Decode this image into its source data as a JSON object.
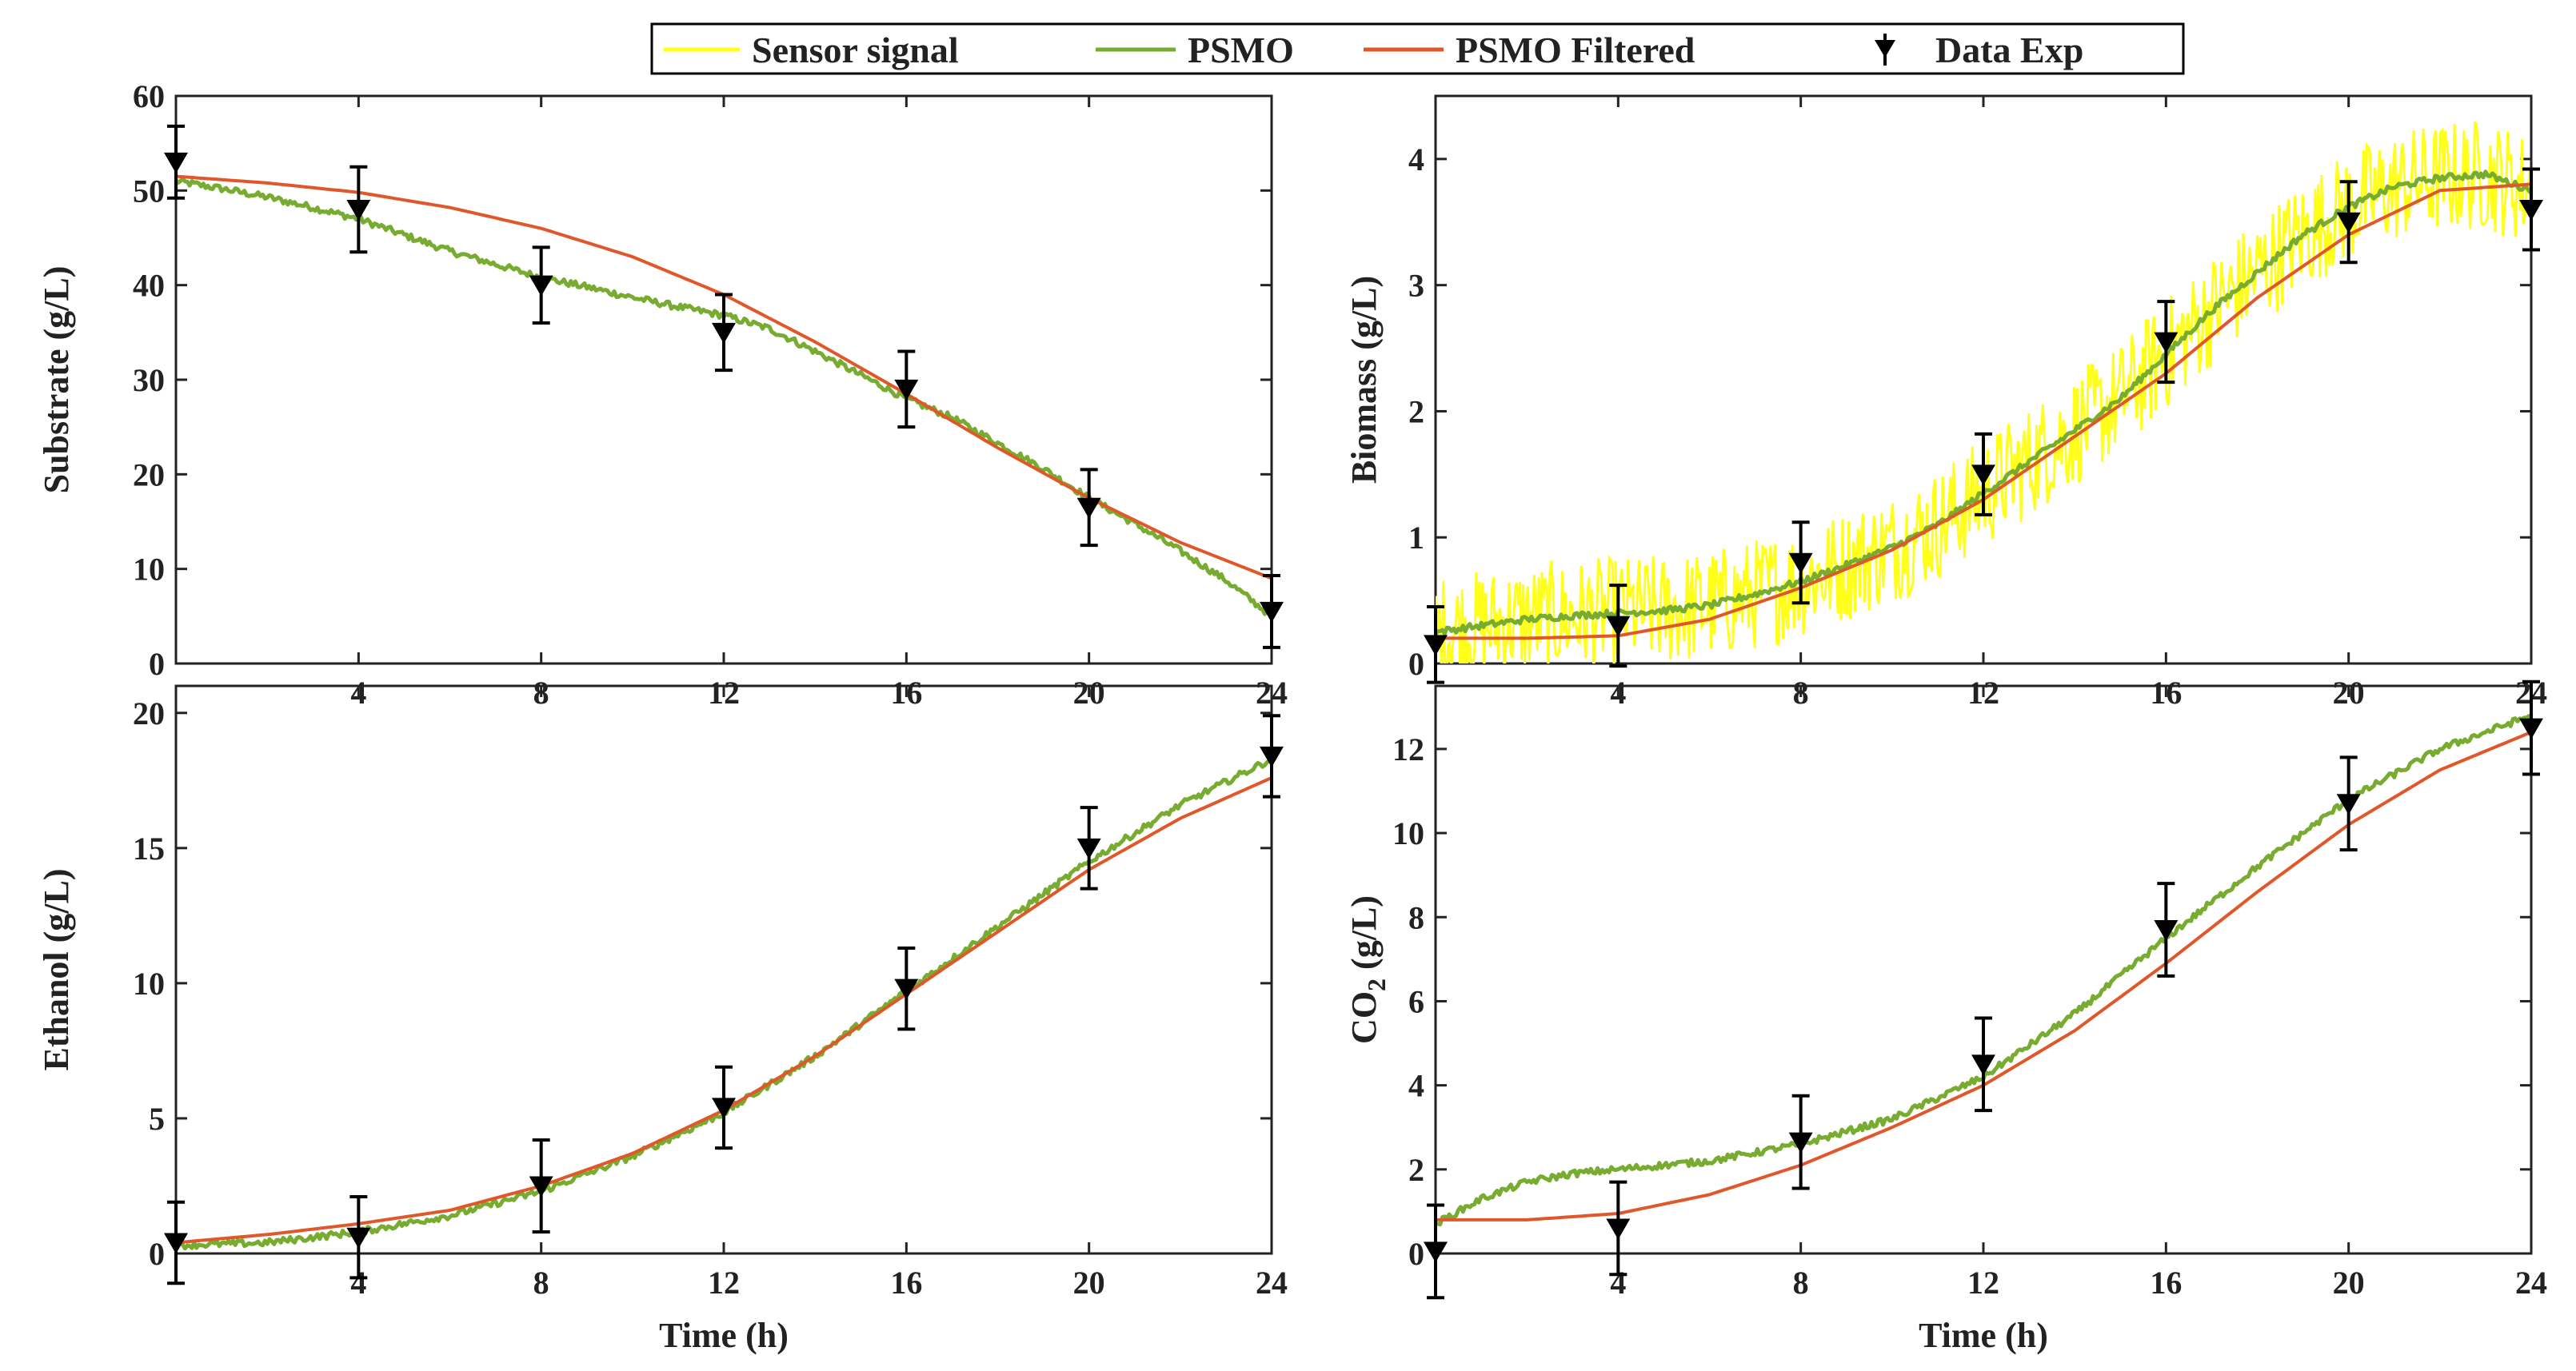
{
  "chart_data": {
    "type": "line",
    "shared_x": [
      0,
      4,
      8,
      12,
      16,
      20,
      24
    ],
    "colors": {
      "sensor_signal": "#ffff1a",
      "psmo": "#77ac30",
      "psmo_filtered": "#e0572a",
      "data_exp": "#000000"
    },
    "legend": {
      "position": "top-center",
      "entries": [
        {
          "key": "sensor_signal",
          "label": "Sensor signal"
        },
        {
          "key": "psmo",
          "label": "PSMO"
        },
        {
          "key": "psmo_filtered",
          "label": "PSMO Filtered"
        },
        {
          "key": "data_exp",
          "label": "Data Exp"
        }
      ]
    },
    "panels": [
      {
        "id": "substrate",
        "ylabel": "Substrate (g/L)",
        "xlabel": "",
        "xlim": [
          0,
          24
        ],
        "ylim": [
          0,
          60
        ],
        "xticks": [
          4,
          8,
          12,
          16,
          20,
          24
        ],
        "yticks": [
          0,
          10,
          20,
          30,
          40,
          50,
          60
        ],
        "psmo": [
          [
            0,
            51.0
          ],
          [
            1,
            50.2
          ],
          [
            2,
            49.3
          ],
          [
            3,
            48.2
          ],
          [
            4,
            47.0
          ],
          [
            5,
            45.3
          ],
          [
            6,
            43.6
          ],
          [
            7,
            42.2
          ],
          [
            8,
            40.8
          ],
          [
            9,
            39.8
          ],
          [
            10,
            38.7
          ],
          [
            11,
            37.7
          ],
          [
            12,
            36.8
          ],
          [
            13,
            35.4
          ],
          [
            14,
            33.0
          ],
          [
            15,
            30.5
          ],
          [
            16,
            28.0
          ],
          [
            17,
            26.0
          ],
          [
            18,
            23.3
          ],
          [
            19,
            20.6
          ],
          [
            20,
            17.5
          ],
          [
            21,
            14.8
          ],
          [
            22,
            11.9
          ],
          [
            23,
            8.8
          ],
          [
            24,
            5.0
          ]
        ],
        "filtered": [
          [
            0,
            51.5
          ],
          [
            2,
            50.8
          ],
          [
            4,
            49.8
          ],
          [
            6,
            48.2
          ],
          [
            8,
            46.0
          ],
          [
            10,
            43.0
          ],
          [
            12,
            39.0
          ],
          [
            14,
            34.0
          ],
          [
            16,
            28.5
          ],
          [
            18,
            22.8
          ],
          [
            20,
            17.5
          ],
          [
            22,
            12.8
          ],
          [
            24,
            9.0
          ]
        ],
        "sensor": [],
        "data_exp": [
          {
            "x": 0,
            "y": 53,
            "err": 3.8
          },
          {
            "x": 4,
            "y": 48,
            "err": 4.5
          },
          {
            "x": 8,
            "y": 40,
            "err": 4.0
          },
          {
            "x": 12,
            "y": 35,
            "err": 4.0
          },
          {
            "x": 16,
            "y": 29,
            "err": 4.0
          },
          {
            "x": 20,
            "y": 16.5,
            "err": 4.0
          },
          {
            "x": 24,
            "y": 5.5,
            "err": 3.8
          }
        ]
      },
      {
        "id": "biomass",
        "ylabel": "Biomass (g/L)",
        "xlabel": "",
        "xlim": [
          0,
          24
        ],
        "ylim": [
          0,
          4.5
        ],
        "xticks": [
          4,
          8,
          12,
          16,
          20,
          24
        ],
        "yticks": [
          0,
          1,
          2,
          3,
          4
        ],
        "psmo": [
          [
            0,
            0.25
          ],
          [
            1,
            0.3
          ],
          [
            2,
            0.35
          ],
          [
            3,
            0.38
          ],
          [
            4,
            0.4
          ],
          [
            5,
            0.42
          ],
          [
            6,
            0.46
          ],
          [
            7,
            0.55
          ],
          [
            8,
            0.65
          ],
          [
            9,
            0.78
          ],
          [
            10,
            0.92
          ],
          [
            11,
            1.1
          ],
          [
            12,
            1.35
          ],
          [
            13,
            1.6
          ],
          [
            14,
            1.85
          ],
          [
            15,
            2.1
          ],
          [
            16,
            2.45
          ],
          [
            17,
            2.8
          ],
          [
            18,
            3.1
          ],
          [
            19,
            3.4
          ],
          [
            20,
            3.62
          ],
          [
            21,
            3.78
          ],
          [
            22,
            3.85
          ],
          [
            23,
            3.88
          ],
          [
            24,
            3.75
          ]
        ],
        "filtered": [
          [
            0,
            0.2
          ],
          [
            2,
            0.2
          ],
          [
            4,
            0.22
          ],
          [
            6,
            0.35
          ],
          [
            8,
            0.6
          ],
          [
            10,
            0.9
          ],
          [
            12,
            1.3
          ],
          [
            14,
            1.8
          ],
          [
            16,
            2.3
          ],
          [
            18,
            2.9
          ],
          [
            20,
            3.4
          ],
          [
            22,
            3.75
          ],
          [
            24,
            3.8
          ]
        ],
        "sensor": [
          [
            0,
            0.25
          ],
          [
            1,
            0.3
          ],
          [
            2,
            0.35
          ],
          [
            3,
            0.38
          ],
          [
            4,
            0.4
          ],
          [
            5,
            0.42
          ],
          [
            6,
            0.46
          ],
          [
            7,
            0.55
          ],
          [
            8,
            0.65
          ],
          [
            9,
            0.78
          ],
          [
            10,
            0.92
          ],
          [
            11,
            1.1
          ],
          [
            12,
            1.35
          ],
          [
            13,
            1.6
          ],
          [
            14,
            1.85
          ],
          [
            15,
            2.1
          ],
          [
            16,
            2.45
          ],
          [
            17,
            2.8
          ],
          [
            18,
            3.1
          ],
          [
            19,
            3.4
          ],
          [
            20,
            3.62
          ],
          [
            21,
            3.78
          ],
          [
            22,
            3.85
          ],
          [
            23,
            3.88
          ],
          [
            24,
            3.75
          ]
        ],
        "sensor_noise": 0.45,
        "data_exp": [
          {
            "x": 0,
            "y": 0.15,
            "err": 0.3
          },
          {
            "x": 4,
            "y": 0.3,
            "err": 0.32
          },
          {
            "x": 8,
            "y": 0.8,
            "err": 0.32
          },
          {
            "x": 12,
            "y": 1.5,
            "err": 0.32
          },
          {
            "x": 16,
            "y": 2.55,
            "err": 0.32
          },
          {
            "x": 20,
            "y": 3.5,
            "err": 0.32
          },
          {
            "x": 24,
            "y": 3.6,
            "err": 0.32
          }
        ]
      },
      {
        "id": "ethanol",
        "ylabel": "Ethanol (g/L)",
        "xlabel": "Time (h)",
        "xlim": [
          0,
          24
        ],
        "ylim": [
          0,
          21
        ],
        "xticks": [
          4,
          8,
          12,
          16,
          20,
          24
        ],
        "yticks": [
          0,
          5,
          10,
          15,
          20
        ],
        "psmo": [
          [
            0,
            0.3
          ],
          [
            2,
            0.4
          ],
          [
            4,
            0.8
          ],
          [
            6,
            1.4
          ],
          [
            8,
            2.3
          ],
          [
            10,
            3.6
          ],
          [
            12,
            5.2
          ],
          [
            14,
            7.3
          ],
          [
            16,
            9.7
          ],
          [
            18,
            12.1
          ],
          [
            20,
            14.5
          ],
          [
            22,
            16.6
          ],
          [
            24,
            18.3
          ]
        ],
        "filtered": [
          [
            0,
            0.4
          ],
          [
            2,
            0.7
          ],
          [
            4,
            1.1
          ],
          [
            6,
            1.6
          ],
          [
            8,
            2.5
          ],
          [
            10,
            3.7
          ],
          [
            12,
            5.3
          ],
          [
            14,
            7.3
          ],
          [
            16,
            9.6
          ],
          [
            18,
            11.9
          ],
          [
            20,
            14.2
          ],
          [
            22,
            16.1
          ],
          [
            24,
            17.6
          ]
        ],
        "sensor": [],
        "data_exp": [
          {
            "x": 0,
            "y": 0.4,
            "err": 1.5
          },
          {
            "x": 4,
            "y": 0.6,
            "err": 1.5
          },
          {
            "x": 8,
            "y": 2.5,
            "err": 1.7
          },
          {
            "x": 12,
            "y": 5.4,
            "err": 1.5
          },
          {
            "x": 16,
            "y": 9.8,
            "err": 1.5
          },
          {
            "x": 20,
            "y": 15.0,
            "err": 1.5
          },
          {
            "x": 24,
            "y": 18.4,
            "err": 1.5
          }
        ]
      },
      {
        "id": "co2",
        "ylabel": "CO2 (g/L)",
        "xlabel": "Time (h)",
        "xlim": [
          0,
          24
        ],
        "ylim": [
          0,
          13.5
        ],
        "xticks": [
          4,
          8,
          12,
          16,
          20,
          24
        ],
        "yticks": [
          0,
          2,
          4,
          6,
          8,
          10,
          12
        ],
        "psmo": [
          [
            0,
            0.7
          ],
          [
            1,
            1.3
          ],
          [
            2,
            1.7
          ],
          [
            3,
            1.9
          ],
          [
            4,
            2.0
          ],
          [
            6,
            2.2
          ],
          [
            8,
            2.6
          ],
          [
            10,
            3.2
          ],
          [
            12,
            4.2
          ],
          [
            14,
            5.7
          ],
          [
            16,
            7.5
          ],
          [
            18,
            9.2
          ],
          [
            20,
            10.8
          ],
          [
            22,
            12.0
          ],
          [
            24,
            12.8
          ]
        ],
        "filtered": [
          [
            0,
            0.8
          ],
          [
            2,
            0.8
          ],
          [
            4,
            0.95
          ],
          [
            6,
            1.4
          ],
          [
            8,
            2.1
          ],
          [
            10,
            3.0
          ],
          [
            12,
            4.0
          ],
          [
            14,
            5.3
          ],
          [
            16,
            6.9
          ],
          [
            18,
            8.6
          ],
          [
            20,
            10.2
          ],
          [
            22,
            11.5
          ],
          [
            24,
            12.4
          ]
        ],
        "sensor": [],
        "data_exp": [
          {
            "x": 0,
            "y": 0.05,
            "err": 1.1
          },
          {
            "x": 4,
            "y": 0.6,
            "err": 1.1
          },
          {
            "x": 8,
            "y": 2.65,
            "err": 1.1
          },
          {
            "x": 12,
            "y": 4.5,
            "err": 1.1
          },
          {
            "x": 16,
            "y": 7.7,
            "err": 1.1
          },
          {
            "x": 20,
            "y": 10.7,
            "err": 1.1
          },
          {
            "x": 24,
            "y": 12.5,
            "err": 1.1
          }
        ]
      }
    ]
  }
}
